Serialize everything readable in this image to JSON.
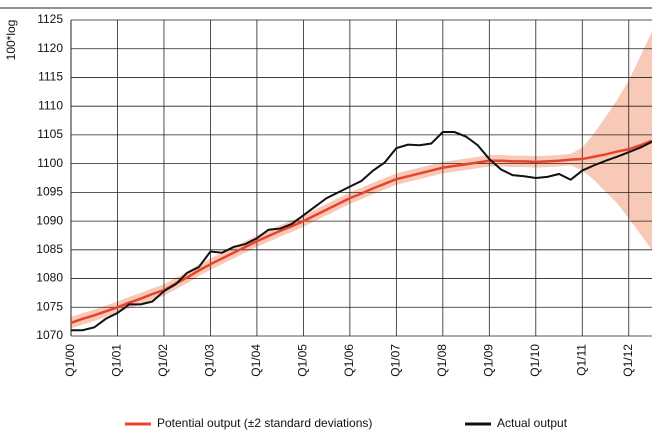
{
  "chart_data": {
    "type": "line",
    "y_label": "100*log",
    "categories": [
      "Q1/00",
      null,
      null,
      null,
      "Q1/01",
      null,
      null,
      null,
      "Q1/02",
      null,
      null,
      null,
      "Q1/03",
      null,
      null,
      null,
      "Q1/04",
      null,
      null,
      null,
      "Q1/05",
      null,
      null,
      null,
      "Q1/06",
      null,
      null,
      null,
      "Q1/07",
      null,
      null,
      null,
      "Q1/08",
      null,
      null,
      null,
      "Q1/09",
      null,
      null,
      null,
      "Q1/10",
      null,
      null,
      null,
      "Q1/11",
      null,
      null,
      null,
      "Q1/12",
      null,
      null
    ],
    "series": [
      {
        "name": "Potential output  (±2 standard deviations)",
        "color": "#e8432a",
        "band_color": "#f9c9b8",
        "values": [
          1072.3,
          1073,
          1073.6,
          1074.3,
          1075,
          1075.8,
          1076.5,
          1077.3,
          1078,
          1079.1,
          1080.2,
          1081.4,
          1082.5,
          1083.5,
          1084.5,
          1085.5,
          1086.5,
          1087.4,
          1088.3,
          1089.1,
          1090,
          1091,
          1092,
          1093,
          1094,
          1094.8,
          1095.7,
          1096.5,
          1097.3,
          1097.8,
          1098.3,
          1098.8,
          1099.3,
          1099.6,
          1099.9,
          1100.2,
          1100.5,
          1100.5,
          1100.4,
          1100.4,
          1100.3,
          1100.4,
          1100.5,
          1100.7,
          1100.8,
          1101.2,
          1101.6,
          1102.1,
          1102.5,
          1103.2,
          1104
        ],
        "errors": [
          1,
          1,
          1,
          1,
          1,
          1,
          1,
          1,
          1,
          1,
          1,
          1,
          1,
          1,
          1,
          1,
          1,
          1,
          1,
          1,
          1,
          1,
          1,
          1,
          1,
          1,
          1,
          1,
          1,
          1,
          1,
          1,
          1,
          1,
          1,
          1,
          1,
          1,
          1,
          1,
          1,
          1,
          1,
          1,
          2,
          4,
          6.5,
          9,
          12,
          15.5,
          19
        ]
      },
      {
        "name": "Actual output",
        "color": "#111111",
        "values": [
          1071,
          1071,
          1071.5,
          1073,
          1074,
          1075.5,
          1075.5,
          1076,
          1077.8,
          1079,
          1081,
          1082,
          1084.7,
          1084.5,
          1085.5,
          1086,
          1087,
          1088.5,
          1088.7,
          1089.5,
          1091,
          1092.5,
          1094,
          1095,
          1096,
          1097,
          1098.8,
          1100.2,
          1102.7,
          1103.3,
          1103.2,
          1103.5,
          1105.5,
          1105.5,
          1104.7,
          1103.2,
          1100.8,
          1099,
          1098,
          1097.8,
          1097.5,
          1097.7,
          1098.2,
          1097.2,
          1098.8,
          1099.7,
          1100.5,
          1101.2,
          1102,
          1102.8,
          1103.8
        ]
      }
    ],
    "ylim": [
      1070,
      1125
    ],
    "yticks": [
      1070,
      1075,
      1080,
      1085,
      1090,
      1095,
      1100,
      1105,
      1110,
      1115,
      1120,
      1125
    ],
    "grid": true
  }
}
